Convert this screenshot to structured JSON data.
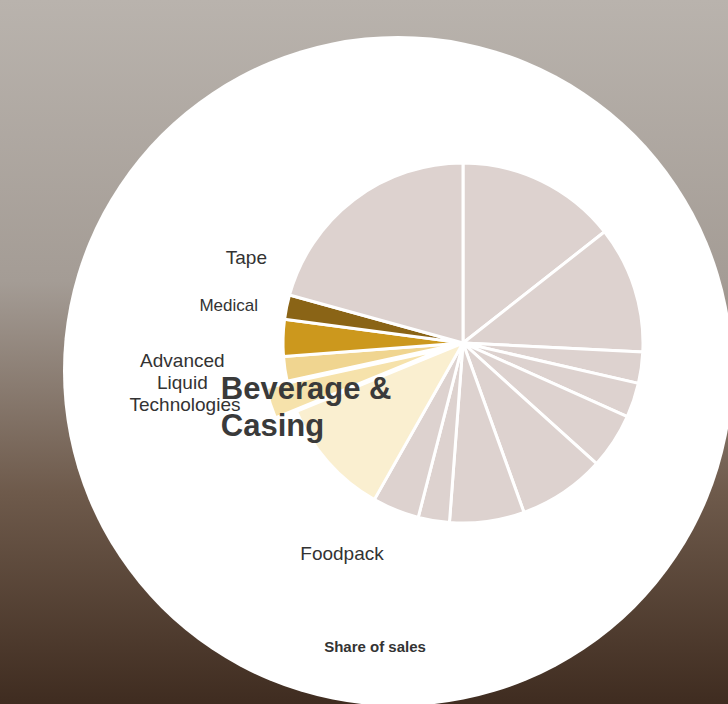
{
  "chart_data": {
    "type": "pie",
    "title": "Share of sales",
    "categories": [
      null,
      null,
      null,
      null,
      null,
      null,
      null,
      null,
      null,
      "Foodpack",
      "Beverage & Casing",
      "Advanced Liquid Technologies",
      "Medical",
      "Tape",
      null
    ],
    "values": [
      14.4,
      11.4,
      2.8,
      3.1,
      5.0,
      7.8,
      6.7,
      2.8,
      4.2,
      10.6,
      2.8,
      2.2,
      3.3,
      2.2,
      20.7
    ],
    "colors": [
      "#ddd2cf",
      "#ddd2cf",
      "#ddd2cf",
      "#ddd2cf",
      "#ddd2cf",
      "#ddd2cf",
      "#ddd2cf",
      "#ddd2cf",
      "#ddd2cf",
      "#faefd0",
      "#f6e2ab",
      "#f0d590",
      "#cc981d",
      "#8a6416",
      "#ddd2cf"
    ]
  }
}
